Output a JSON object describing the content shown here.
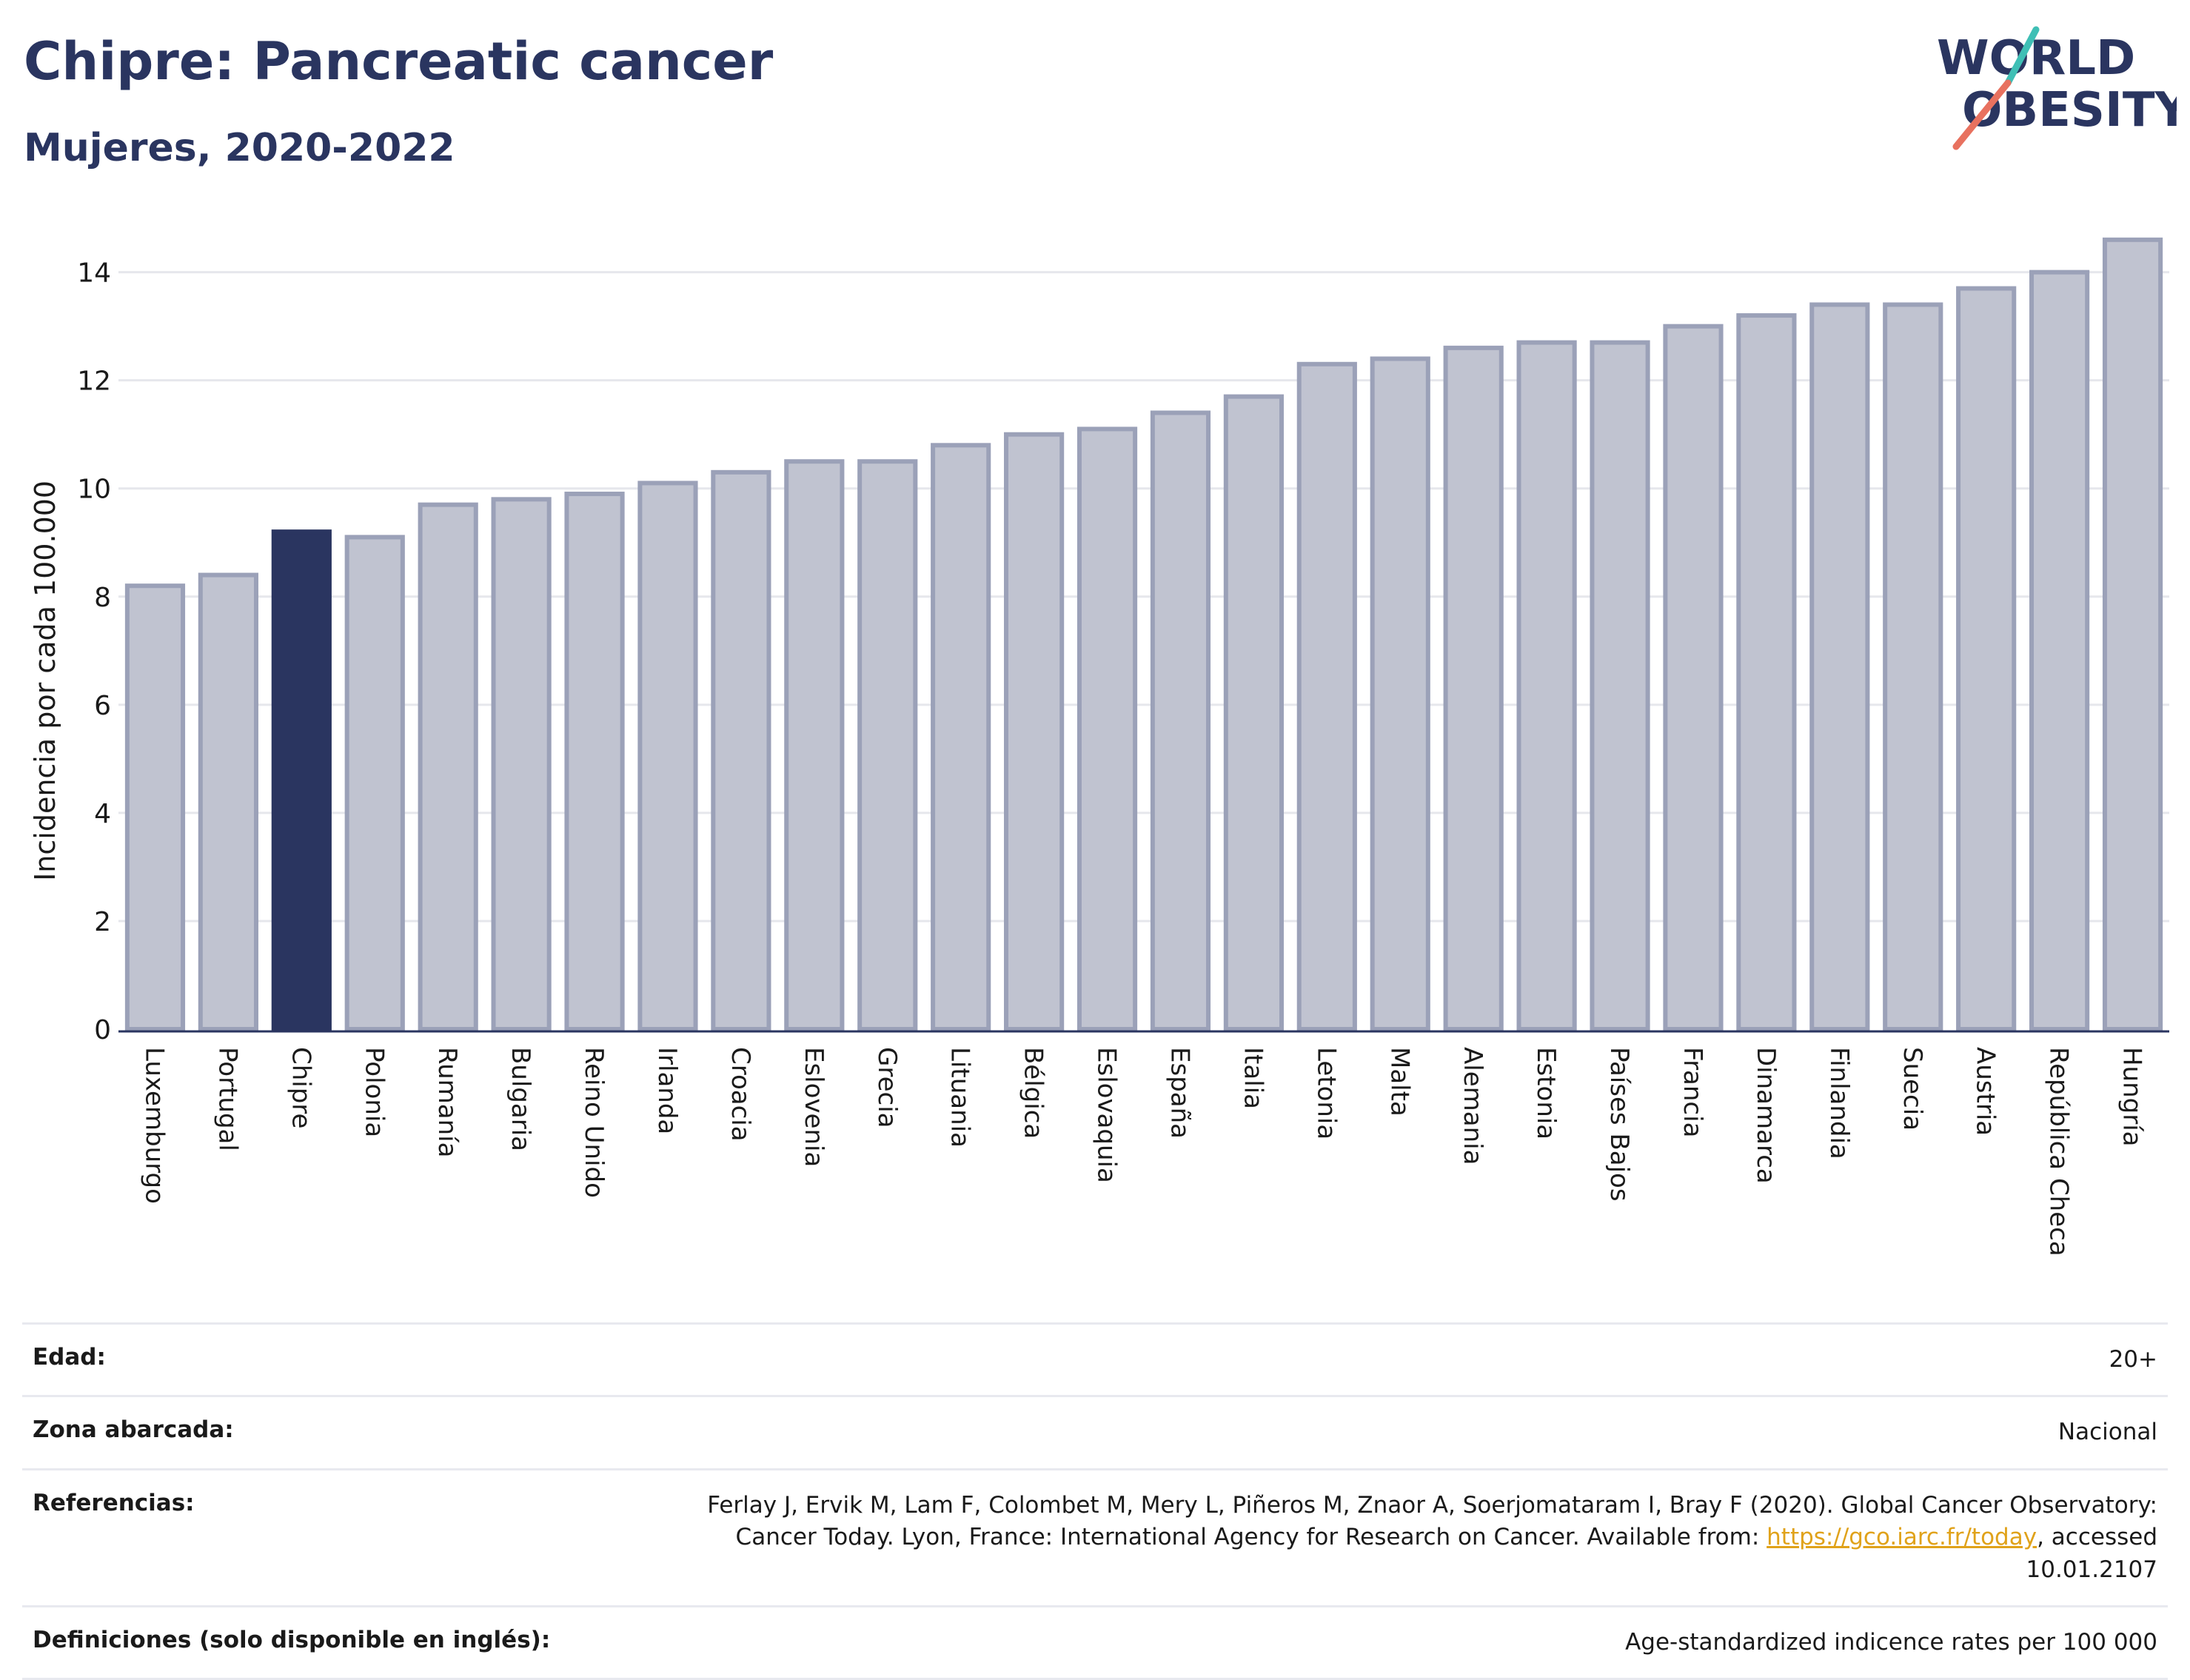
{
  "header": {
    "title": "Chipre: Pancreatic cancer",
    "subtitle": "Mujeres, 2020-2022"
  },
  "logo": {
    "line1": "WORLD",
    "line2": "OBESITY",
    "accent_color": "#e8715f",
    "accent_color_2": "#3fbfb5"
  },
  "chart_data": {
    "type": "bar",
    "ylabel": "Incidencia por cada 100.000",
    "xlabel": "",
    "ylim": [
      0,
      15.2
    ],
    "yticks": [
      0,
      2,
      4,
      6,
      8,
      10,
      12,
      14
    ],
    "grid": true,
    "highlight": "Chipre",
    "bar_color": "#c0c3d0",
    "bar_edge_color": "#9ba1b8",
    "highlight_color": "#2a3560",
    "categories": [
      "Luxemburgo",
      "Portugal",
      "Chipre",
      "Polonia",
      "Rumanía",
      "Bulgaria",
      "Reino Unido",
      "Irlanda",
      "Croacia",
      "Eslovenia",
      "Grecia",
      "Lituania",
      "Bélgica",
      "Eslovaquia",
      "España",
      "Italia",
      "Letonia",
      "Malta",
      "Alemania",
      "Estonia",
      "Países Bajos",
      "Francia",
      "Dinamarca",
      "Finlandia",
      "Suecia",
      "Austria",
      "República Checa",
      "Hungría"
    ],
    "values": [
      8.2,
      8.4,
      9.2,
      9.1,
      9.7,
      9.8,
      9.9,
      10.1,
      10.3,
      10.5,
      10.5,
      10.8,
      11.0,
      11.1,
      11.4,
      11.7,
      12.3,
      12.4,
      12.6,
      12.7,
      12.7,
      13.0,
      13.2,
      13.4,
      13.4,
      13.7,
      14.0,
      14.6
    ]
  },
  "info": {
    "rows": [
      {
        "label": "Edad:",
        "value": "20+"
      },
      {
        "label": "Zona abarcada:",
        "value": "Nacional"
      },
      {
        "label": "Referencias:",
        "value_before": "Ferlay J, Ervik M, Lam F, Colombet M, Mery L, Piñeros M, Znaor A, Soerjomataram I, Bray F (2020). Global Cancer Observatory: Cancer Today. Lyon, France: International Agency for Research on Cancer. Available from: ",
        "link": "https://gco.iarc.fr/today",
        "value_after": ", accessed 10.01.2107"
      },
      {
        "label": "Definiciones (solo disponible en inglés):",
        "value": "Age-standardized indicence rates per 100 000"
      }
    ]
  }
}
